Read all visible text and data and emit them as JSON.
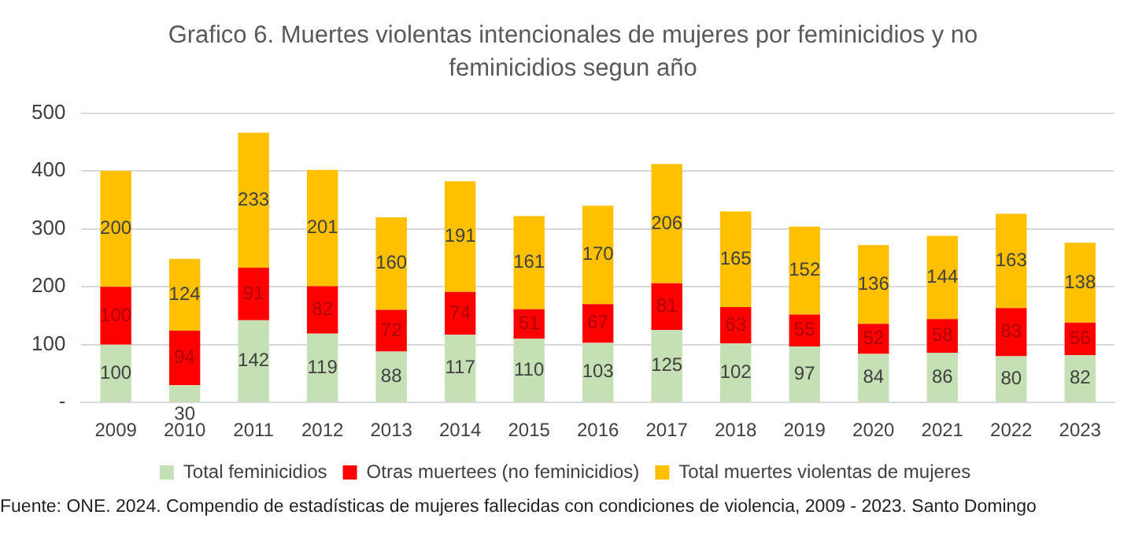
{
  "chart_data": {
    "type": "bar",
    "stacked": true,
    "title": "Grafico 6. Muertes violentas intencionales de mujeres por feminicidios y no feminicidios segun año",
    "categories": [
      "2009",
      "2010",
      "2011",
      "2012",
      "2013",
      "2014",
      "2015",
      "2016",
      "2017",
      "2018",
      "2019",
      "2020",
      "2021",
      "2022",
      "2023"
    ],
    "series": [
      {
        "name": "Total feminicidios",
        "color": "#c5e0b4",
        "values": [
          100,
          30,
          142,
          119,
          88,
          117,
          110,
          103,
          125,
          102,
          97,
          84,
          86,
          80,
          82
        ]
      },
      {
        "name": "Otras muertees (no feminicidios)",
        "color": "#ff0000",
        "values": [
          100,
          94,
          91,
          82,
          72,
          74,
          51,
          67,
          81,
          63,
          55,
          52,
          58,
          83,
          56
        ]
      },
      {
        "name": "Total muertes violentas de mujeres",
        "color": "#ffc000",
        "values": [
          200,
          124,
          233,
          201,
          160,
          191,
          161,
          170,
          206,
          165,
          152,
          136,
          144,
          163,
          138
        ]
      }
    ],
    "ylim": [
      0,
      500
    ],
    "yticks": [
      {
        "value": 0,
        "label": "-"
      },
      100,
      200,
      300,
      400,
      500
    ],
    "grid": "y",
    "legend": "bottom",
    "data_labels": true,
    "annotations": [
      "Fuente: ONE. 2024. Compendio de estadísticas de mujeres fallecidas con condiciones de violencia, 2009 - 2023. Santo Domingo"
    ]
  }
}
